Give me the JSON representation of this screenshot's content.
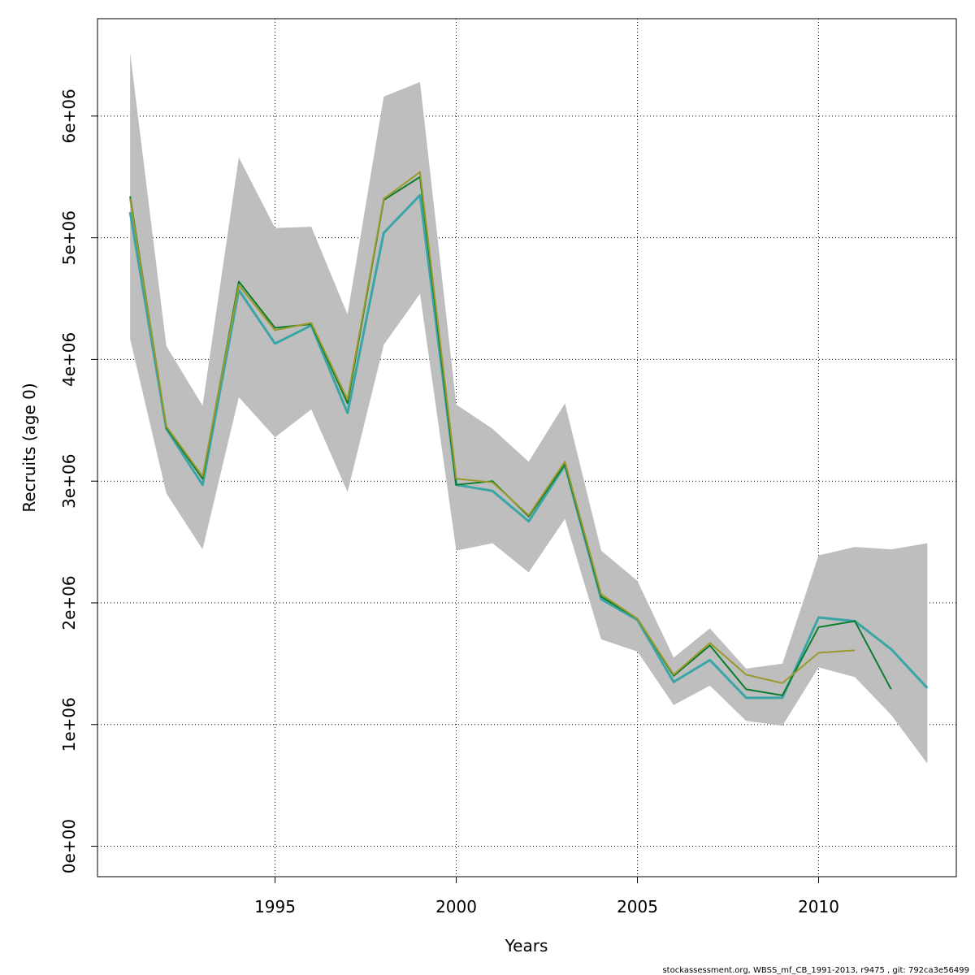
{
  "chart_data": {
    "type": "line",
    "xlabel": "Years",
    "ylabel": "Recruits (age 0)",
    "xlim": [
      1990.1,
      2013.8
    ],
    "ylim": [
      -250000,
      6800000
    ],
    "x_ticks": [
      1995,
      2000,
      2005,
      2010
    ],
    "x_tick_labels": [
      "1995",
      "2000",
      "2005",
      "2010"
    ],
    "y_ticks": [
      0,
      1000000,
      2000000,
      3000000,
      4000000,
      5000000,
      6000000
    ],
    "y_tick_labels": [
      "0e+00",
      "1e+06",
      "2e+06",
      "3e+06",
      "4e+06",
      "5e+06",
      "6e+06"
    ],
    "grid": true,
    "confidence_band": {
      "color": "#bebebe",
      "x": [
        1991,
        1992,
        1993,
        1994,
        1995,
        1996,
        1997,
        1998,
        1999,
        2000,
        2001,
        2002,
        2003,
        2004,
        2005,
        2006,
        2007,
        2008,
        2009,
        2010,
        2011,
        2012,
        2013
      ],
      "lower": [
        4170000,
        2900000,
        2440000,
        3690000,
        3360000,
        3590000,
        2910000,
        4120000,
        4540000,
        2430000,
        2490000,
        2250000,
        2690000,
        1700000,
        1600000,
        1160000,
        1320000,
        1030000,
        990000,
        1470000,
        1390000,
        1080000,
        680000
      ],
      "upper": [
        6520000,
        4110000,
        3620000,
        5660000,
        5080000,
        5090000,
        4370000,
        6160000,
        6280000,
        3630000,
        3430000,
        3160000,
        3640000,
        2430000,
        2180000,
        1550000,
        1790000,
        1460000,
        1500000,
        2390000,
        2460000,
        2440000,
        2490000
      ]
    },
    "series": [
      {
        "color": "#3aa5a5",
        "width": 3,
        "x": [
          1991,
          1992,
          1993,
          1994,
          1995,
          1996,
          1997,
          1998,
          1999,
          2000,
          2001,
          2002,
          2003,
          2004,
          2005,
          2006,
          2007,
          2008,
          2009,
          2010,
          2011,
          2012,
          2013
        ],
        "values": [
          5210000,
          3430000,
          2970000,
          4570000,
          4130000,
          4280000,
          3560000,
          5040000,
          5350000,
          2970000,
          2920000,
          2670000,
          3130000,
          2030000,
          1860000,
          1350000,
          1530000,
          1220000,
          1220000,
          1880000,
          1850000,
          1620000,
          1300000
        ]
      },
      {
        "color": "#0a7d2b",
        "width": 2,
        "x": [
          1991,
          1992,
          1993,
          1994,
          1995,
          1996,
          1997,
          1998,
          1999,
          2000,
          2001,
          2002,
          2003,
          2004,
          2005,
          2006,
          2007,
          2008,
          2009,
          2010,
          2011,
          2012
        ],
        "values": [
          5340000,
          3440000,
          3020000,
          4640000,
          4260000,
          4290000,
          3640000,
          5310000,
          5500000,
          2970000,
          3000000,
          2710000,
          3140000,
          2050000,
          1870000,
          1400000,
          1650000,
          1290000,
          1240000,
          1800000,
          1850000,
          1290000
        ]
      },
      {
        "color": "#9a9a2a",
        "width": 2,
        "x": [
          1991,
          1992,
          1993,
          1994,
          1995,
          1996,
          1997,
          1998,
          1999,
          2000,
          2001,
          2002,
          2003,
          2004,
          2005,
          2006,
          2007,
          2008,
          2009,
          2010,
          2011
        ],
        "values": [
          5320000,
          3450000,
          3040000,
          4610000,
          4240000,
          4300000,
          3670000,
          5320000,
          5540000,
          3020000,
          2990000,
          2720000,
          3160000,
          2070000,
          1870000,
          1410000,
          1670000,
          1410000,
          1340000,
          1590000,
          1610000
        ]
      }
    ]
  },
  "footer_text": "stockassessment.org, WBSS_mf_CB_1991-2013, r9475 , git: 792ca3e56499"
}
